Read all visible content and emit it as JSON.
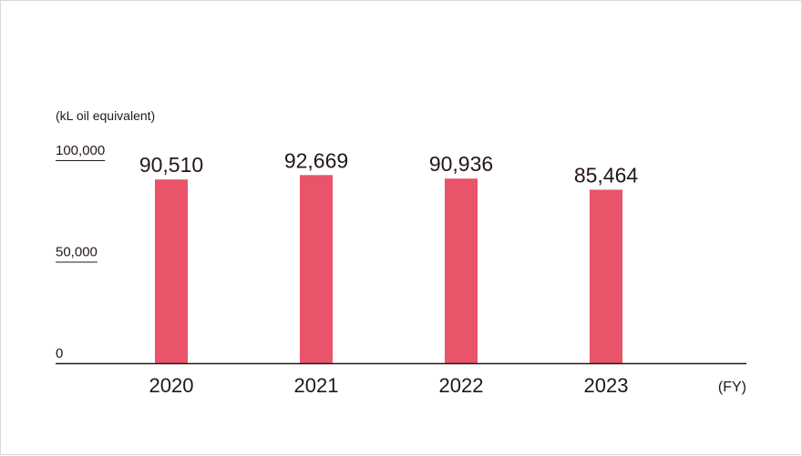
{
  "chart_data": {
    "type": "bar",
    "y_unit_label": "(kL oil equivalent)",
    "x_unit_label": "(FY)",
    "categories": [
      "2020",
      "2021",
      "2022",
      "2023"
    ],
    "values": [
      90510,
      92669,
      90936,
      85464
    ],
    "value_labels": [
      "90,510",
      "92,669",
      "90,936",
      "85,464"
    ],
    "ylim": [
      0,
      100000
    ],
    "y_ticks": [
      {
        "value": 0,
        "label": "0"
      },
      {
        "value": 50000,
        "label": "50,000"
      },
      {
        "value": 100000,
        "label": "100,000"
      }
    ],
    "bar_color": "#e9546b",
    "grid": false,
    "legend": "none"
  }
}
